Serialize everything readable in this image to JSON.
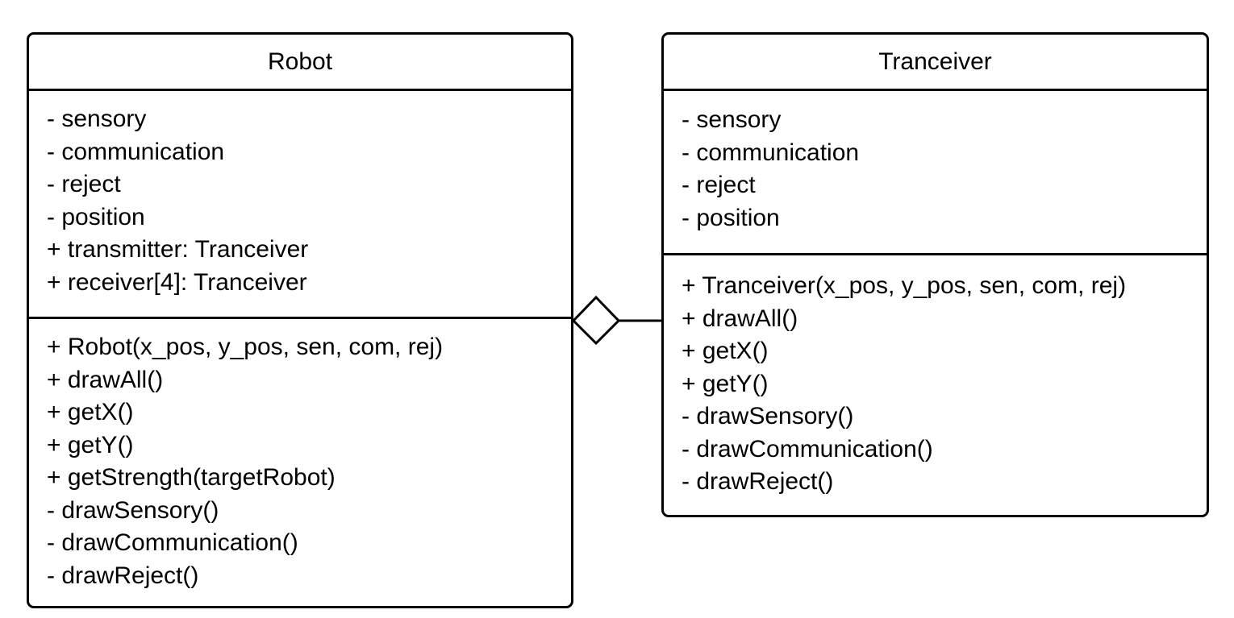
{
  "classes": {
    "robot": {
      "name": "Robot",
      "attributes": [
        "- sensory",
        "- communication",
        "- reject",
        "- position",
        "+ transmitter: Tranceiver",
        "+ receiver[4]: Tranceiver"
      ],
      "operations": [
        "+ Robot(x_pos, y_pos, sen, com, rej)",
        "+ drawAll()",
        "+ getX()",
        "+ getY()",
        "+ getStrength(targetRobot)",
        "- drawSensory()",
        "- drawCommunication()",
        "- drawReject()"
      ]
    },
    "tranceiver": {
      "name": "Tranceiver",
      "attributes": [
        "- sensory",
        "- communication",
        "- reject",
        "- position"
      ],
      "operations": [
        "+ Tranceiver(x_pos, y_pos, sen, com, rej)",
        "+ drawAll()",
        "+ getX()",
        "+ getY()",
        "- drawSensory()",
        "- drawCommunication()",
        "- drawReject()"
      ]
    }
  },
  "relationship": {
    "type": "aggregation",
    "whole": "Robot",
    "part": "Tranceiver",
    "line_color": "#000000"
  }
}
